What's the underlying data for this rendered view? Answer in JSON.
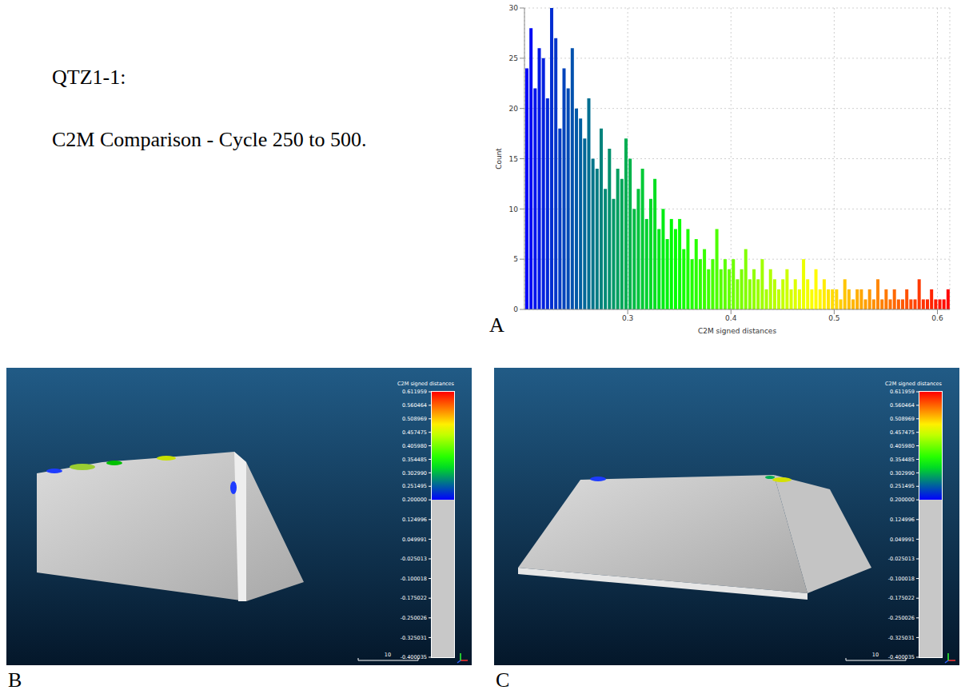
{
  "caption": {
    "sample": "QTZ1-1:",
    "title": "C2M Comparison - Cycle 250 to 500."
  },
  "chart_data": {
    "type": "histogram",
    "panel": "A",
    "x_label": "C2M signed distances",
    "y_label": "Count",
    "bins": [
      0.2,
      0.204,
      0.208,
      0.212,
      0.216,
      0.22,
      0.224,
      0.228,
      0.232,
      0.236,
      0.24,
      0.244,
      0.248,
      0.252,
      0.256,
      0.26,
      0.264,
      0.268,
      0.272,
      0.276,
      0.28,
      0.284,
      0.288,
      0.292,
      0.296,
      0.3,
      0.304,
      0.308,
      0.312,
      0.316,
      0.32,
      0.324,
      0.328,
      0.332,
      0.336,
      0.34,
      0.344,
      0.348,
      0.352,
      0.356,
      0.36,
      0.364,
      0.368,
      0.372,
      0.376,
      0.38,
      0.384,
      0.388,
      0.392,
      0.396,
      0.4,
      0.404,
      0.408,
      0.412,
      0.416,
      0.42,
      0.424,
      0.428,
      0.432,
      0.436,
      0.44,
      0.444,
      0.448,
      0.452,
      0.456,
      0.46,
      0.464,
      0.468,
      0.472,
      0.476,
      0.48,
      0.484,
      0.488,
      0.492,
      0.496,
      0.5,
      0.504,
      0.508,
      0.512,
      0.516,
      0.52,
      0.524,
      0.528,
      0.532,
      0.536,
      0.54,
      0.544,
      0.548,
      0.552,
      0.556,
      0.56,
      0.564,
      0.568,
      0.572,
      0.576,
      0.58,
      0.584,
      0.588,
      0.592,
      0.596,
      0.6,
      0.604,
      0.608,
      0.612
    ],
    "counts": [
      24,
      28,
      22,
      26,
      25,
      21,
      30,
      27,
      18,
      24,
      22,
      26,
      20,
      19,
      17,
      21,
      15,
      14,
      18,
      12,
      16,
      11,
      14,
      13,
      17,
      15,
      10,
      12,
      14,
      9,
      11,
      13,
      8,
      10,
      7,
      9,
      8,
      9,
      6,
      8,
      5,
      7,
      5,
      6,
      4,
      5,
      8,
      4,
      5,
      4,
      5,
      3,
      4,
      6,
      3,
      4,
      3,
      5,
      2,
      4,
      3,
      2,
      3,
      4,
      2,
      3,
      2,
      5,
      3,
      2,
      4,
      2,
      3,
      2,
      2,
      2,
      1,
      3,
      2,
      1,
      2,
      2,
      1,
      2,
      1,
      3,
      1,
      2,
      1,
      2,
      1,
      1,
      2,
      1,
      1,
      3,
      1,
      1,
      2,
      1,
      1,
      1,
      2
    ],
    "xlim": [
      0.2,
      0.612
    ],
    "ylim": [
      0,
      30
    ],
    "xticks": [
      0.3,
      0.4,
      0.5,
      0.6
    ],
    "yticks": [
      0,
      5,
      10,
      15,
      20,
      25,
      30
    ],
    "grid": true
  },
  "views": [
    {
      "panel": "B",
      "colorbar": {
        "title": "C2M signed distances",
        "range": [
          -0.400035,
          0.611959
        ],
        "saturation_range": [
          0.2,
          0.611959
        ],
        "ticks": [
          0.611959,
          0.560464,
          0.508969,
          0.457475,
          {
            "value": 0.40598,
            "label": "0.405980"
          },
          0.354485,
          {
            "value": 0.30299,
            "label": "0.302990"
          },
          0.251495,
          {
            "value": 0.2,
            "label": "0.200000"
          },
          0.124996,
          0.049991,
          -0.025013,
          -0.100018,
          -0.175022,
          -0.250026,
          -0.325031,
          -0.400035
        ]
      },
      "scale_bar": 10
    },
    {
      "panel": "C",
      "colorbar": {
        "title": "C2M signed distances",
        "range": [
          -0.400035,
          0.611959
        ],
        "saturation_range": [
          0.2,
          0.611959
        ],
        "ticks": [
          0.611959,
          0.560464,
          0.508969,
          0.457475,
          {
            "value": 0.40598,
            "label": "0.405980"
          },
          0.354485,
          {
            "value": 0.30299,
            "label": "0.302990"
          },
          0.251495,
          {
            "value": 0.2,
            "label": "0.200000"
          },
          0.124996,
          0.049991,
          -0.025013,
          -0.100018,
          -0.175022,
          -0.250026,
          -0.325031,
          -0.400035
        ]
      },
      "scale_bar": 10
    }
  ]
}
